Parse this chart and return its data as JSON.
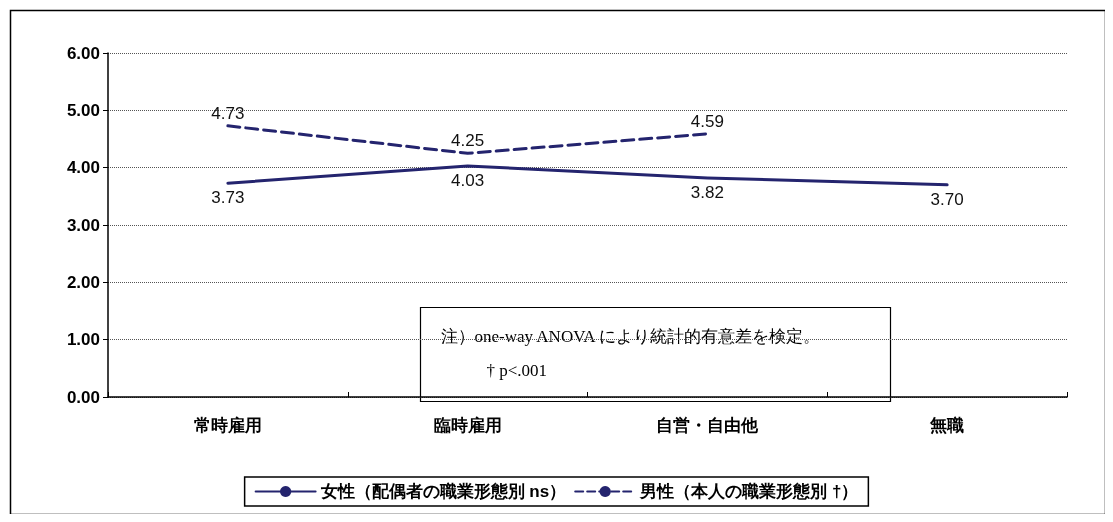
{
  "chart_data": {
    "type": "line",
    "categories": [
      "常時雇用",
      "臨時雇用",
      "自営・自由他",
      "無職"
    ],
    "series": [
      {
        "name": "女性（配偶者の職業形態別 ns）",
        "color": "#24246e",
        "values": [
          3.73,
          4.03,
          3.82,
          3.7
        ],
        "value_labels": [
          "3.73",
          "4.03",
          "3.82",
          "3.70"
        ],
        "line_style": "solid"
      },
      {
        "name": "男性（本人の職業形態別 †）",
        "color": "#24246e",
        "values": [
          4.73,
          4.25,
          4.59,
          null
        ],
        "value_labels": [
          "4.73",
          "4.25",
          "4.59",
          null
        ],
        "line_style": "dashed"
      }
    ],
    "ylim": [
      0,
      6
    ],
    "yticks": [
      {
        "value": 0,
        "label": "0.00"
      },
      {
        "value": 1,
        "label": "1.00"
      },
      {
        "value": 2,
        "label": "2.00"
      },
      {
        "value": 3,
        "label": "3.00"
      },
      {
        "value": 4,
        "label": "4.00"
      },
      {
        "value": 5,
        "label": "5.00"
      },
      {
        "value": 6,
        "label": "6.00"
      }
    ],
    "grid": "y",
    "legend": "bottom",
    "marker": "none",
    "annotations": [
      "注）one-way ANOVA により統計的有意差を検定。",
      "† p<.001"
    ]
  }
}
